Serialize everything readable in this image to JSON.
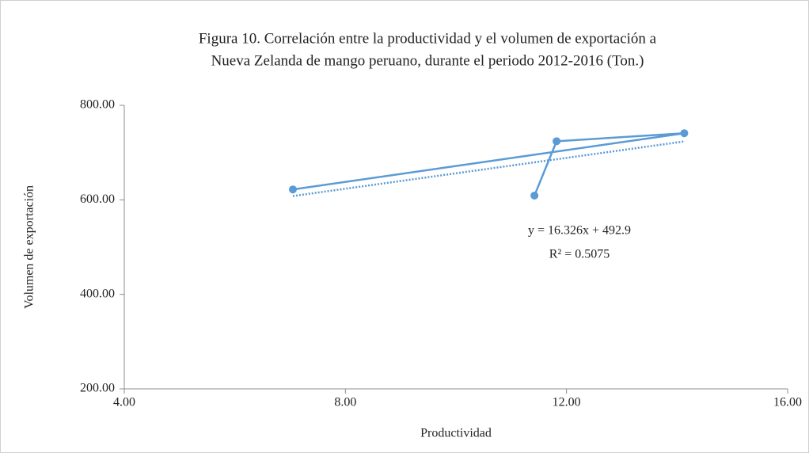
{
  "chart_data": {
    "type": "scatter",
    "title": [
      "Figura 10. Correlación entre la productividad y el volumen de exportación a",
      "Nueva Zelanda de mango peruano, durante el periodo 2012-2016 (Ton.)"
    ],
    "x_label": "Productividad",
    "y_label": "Volumen de exportación",
    "series": [
      {
        "color": "#5b9bd5",
        "x": [
          7.05,
          14.13,
          11.82,
          11.42
        ],
        "values": [
          622,
          741,
          724,
          609
        ]
      }
    ],
    "trendline": {
      "slope": 16.326,
      "intercept": 492.9,
      "equation": "y = 16.326x + 492.9",
      "r2_label": "R² = 0.5075"
    },
    "xlim": [
      4,
      16
    ],
    "xticks": [
      {
        "value": 4,
        "label": "4.00"
      },
      {
        "value": 8,
        "label": "8.00"
      },
      {
        "value": 12,
        "label": "12.00"
      },
      {
        "value": 16,
        "label": "16.00"
      }
    ],
    "ylim": [
      200,
      800
    ],
    "yticks": [
      {
        "value": 200,
        "label": "200.00"
      },
      {
        "value": 400,
        "label": "400.00"
      },
      {
        "value": 600,
        "label": "600.00"
      },
      {
        "value": 800,
        "label": "800.00"
      }
    ],
    "grid": false
  }
}
